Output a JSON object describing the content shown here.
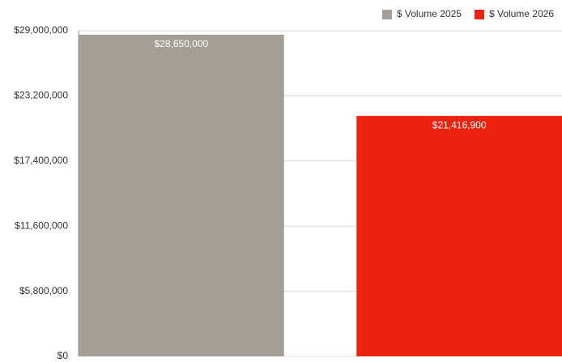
{
  "chart_data": {
    "type": "bar",
    "categories": [
      null
    ],
    "series": [
      {
        "name": "$ Volume 2025",
        "color": "#a39e96",
        "values": [
          28650000
        ],
        "value_labels": [
          "$28,650,000"
        ]
      },
      {
        "name": "$ Volume 2026",
        "color": "#ee2210",
        "values": [
          21416900
        ],
        "value_labels": [
          "$21,416,900"
        ]
      }
    ],
    "ylim": [
      0,
      29000000
    ],
    "yticks": [
      {
        "value": 0,
        "label": "$0"
      },
      {
        "value": 5800000,
        "label": "$5,800,000"
      },
      {
        "value": 11600000,
        "label": "$11,600,000"
      },
      {
        "value": 17400000,
        "label": "$17,400,000"
      },
      {
        "value": 23200000,
        "label": "$23,200,000"
      },
      {
        "value": 29000000,
        "label": "$29,000,000"
      }
    ],
    "grid": true,
    "legend": "top-right"
  }
}
